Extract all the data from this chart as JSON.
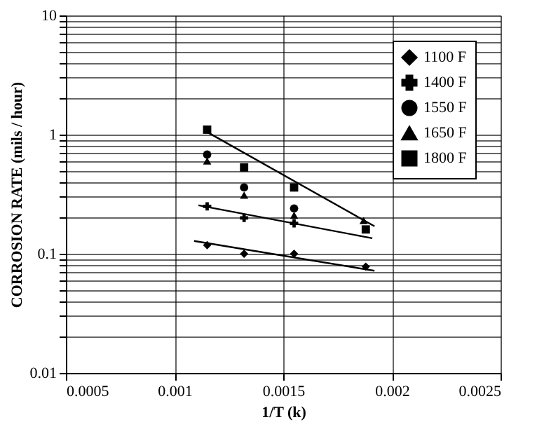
{
  "chart_data": {
    "type": "scatter",
    "xlabel": "1/T (k)",
    "ylabel": "CORROSION RATE (mils / hour)",
    "log": "y",
    "grid": true,
    "legend": "top right",
    "xlim": [
      0.0005,
      0.0025
    ],
    "xticks": [
      0.0005,
      0.001,
      0.0015,
      0.002,
      0.0025
    ],
    "ylim": [
      0.01,
      10
    ],
    "yticks": [
      0.01,
      {
        "value": 0.02,
        "label": null
      },
      {
        "value": 0.03,
        "label": null
      },
      {
        "value": 0.04,
        "label": null
      },
      {
        "value": 0.05,
        "label": null
      },
      {
        "value": 0.06,
        "label": null
      },
      {
        "value": 0.07,
        "label": null
      },
      {
        "value": 0.08,
        "label": null
      },
      {
        "value": 0.09,
        "label": null
      },
      0.1,
      {
        "value": 0.2,
        "label": null
      },
      {
        "value": 0.3,
        "label": null
      },
      {
        "value": 0.4,
        "label": null
      },
      {
        "value": 0.5,
        "label": null
      },
      {
        "value": 0.6,
        "label": null
      },
      {
        "value": 0.7,
        "label": null
      },
      {
        "value": 0.8,
        "label": null
      },
      {
        "value": 0.9,
        "label": null
      },
      1,
      {
        "value": 2,
        "label": null
      },
      {
        "value": 3,
        "label": null
      },
      {
        "value": 4,
        "label": null
      },
      {
        "value": 5,
        "label": null
      },
      {
        "value": 6,
        "label": null
      },
      {
        "value": 7,
        "label": null
      },
      {
        "value": 8,
        "label": null
      },
      {
        "value": 9,
        "label": null
      },
      10
    ],
    "series": [
      {
        "name": "1100 F",
        "marker": "diamond",
        "color": "#000000",
        "x": [
          0.00115,
          0.00132,
          0.00155,
          0.00188
        ],
        "values": [
          0.118,
          0.1,
          0.1,
          0.078
        ]
      },
      {
        "name": "1400 F",
        "marker": "cross",
        "color": "#000000",
        "x": [
          0.00115,
          0.00132,
          0.00155
        ],
        "values": [
          0.25,
          0.2,
          0.18
        ]
      },
      {
        "name": "1550 F",
        "marker": "circle",
        "color": "#000000",
        "x": [
          0.00115,
          0.00132,
          0.00155
        ],
        "values": [
          0.68,
          0.36,
          0.24
        ]
      },
      {
        "name": "1650 F",
        "marker": "triangle",
        "color": "#000000",
        "x": [
          0.00115,
          0.00132,
          0.00155,
          0.00187
        ],
        "values": [
          0.6,
          0.31,
          0.21,
          0.19
        ]
      },
      {
        "name": "1800 F",
        "marker": "square",
        "color": "#000000",
        "x": [
          0.00115,
          0.00132,
          0.00155,
          0.00188
        ],
        "values": [
          1.1,
          0.53,
          0.36,
          0.16
        ]
      },
      {
        "type": "line",
        "color": "#000000",
        "x": [
          0.00109,
          0.00192
        ],
        "values": [
          0.128,
          0.072
        ]
      },
      {
        "type": "line",
        "color": "#000000",
        "x": [
          0.00111,
          0.00191
        ],
        "values": [
          0.255,
          0.135
        ]
      },
      {
        "type": "line",
        "color": "#000000",
        "x": [
          0.00115,
          0.00192
        ],
        "values": [
          1.05,
          0.17
        ]
      }
    ]
  }
}
